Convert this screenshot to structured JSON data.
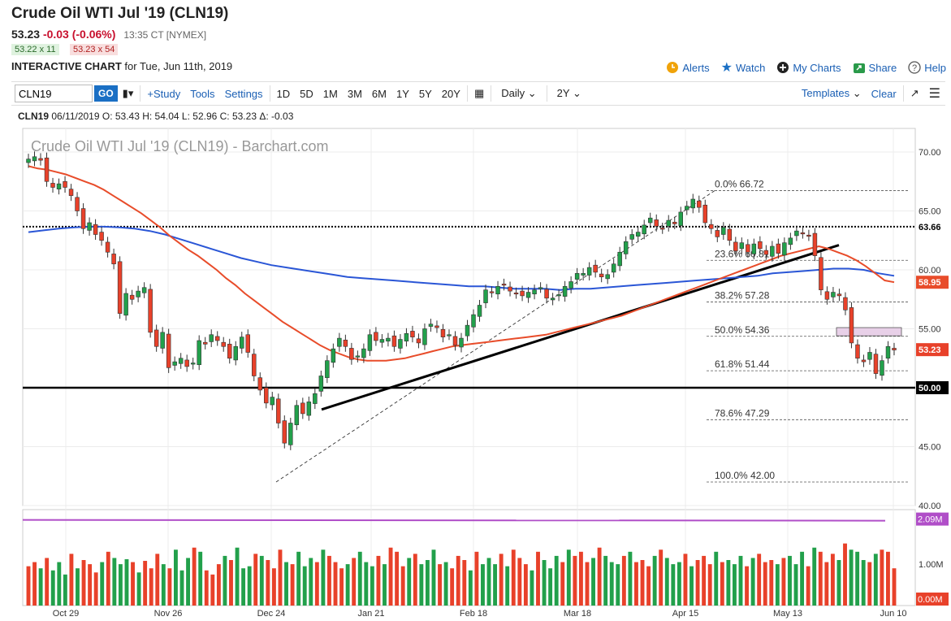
{
  "header": {
    "title": "Crude Oil WTI Jul '19 (CLN19)",
    "last": "53.23",
    "change": "-0.03 (-0.06%)",
    "time": "13:35 CT [NYMEX]",
    "bid": "53.22 x 11",
    "ask": "53.23 x 54",
    "chart_kind": "INTERACTIVE CHART",
    "chart_date": "for Tue, Jun 11th, 2019"
  },
  "top_links": {
    "alerts": "Alerts",
    "watch": "Watch",
    "my_charts": "My Charts",
    "share": "Share",
    "help": "Help"
  },
  "toolbar": {
    "symbol": "CLN19",
    "go": "GO",
    "study": "+Study",
    "tools": "Tools",
    "settings": "Settings",
    "periods": [
      "1D",
      "5D",
      "1M",
      "3M",
      "6M",
      "1Y",
      "5Y",
      "20Y"
    ],
    "interval": "Daily",
    "range": "2Y",
    "templates": "Templates",
    "clear": "Clear"
  },
  "ohlc_line": {
    "symbol": "CLN19",
    "rest": "06/11/2019 O: 53.43 H: 54.04 L: 52.96 C: 53.23 Δ: -0.03"
  },
  "chart_data": {
    "type": "candlestick",
    "title": "Crude Oil WTI Jul '19 (CLN19) - Barchart.com",
    "y_ticks": [
      "70.00",
      "65.00",
      "60.00",
      "55.00",
      "50.00",
      "45.00",
      "40.00"
    ],
    "ylim": [
      40,
      72
    ],
    "x_ticks": [
      "Oct 29",
      "Nov 26",
      "Dec 24",
      "Jan 21",
      "Feb 18",
      "Mar 18",
      "Apr 15",
      "May 13",
      "Jun 10"
    ],
    "price_badges": {
      "resistance": "63.66",
      "sma50": "58.95",
      "last": "53.23",
      "support": "50.00"
    },
    "fib_labels": [
      "0.0% 66.72",
      "23.6% 60.81",
      "38.2% 57.28",
      "50.0% 54.36",
      "61.8% 51.44",
      "78.6% 47.29",
      "100.0% 42.00"
    ],
    "fib_levels": [
      66.72,
      60.81,
      57.28,
      54.36,
      51.44,
      47.29,
      42.0
    ],
    "closes": [
      69.4,
      69.6,
      69.3,
      67.5,
      67.0,
      67.3,
      67.0,
      66.3,
      65.0,
      63.5,
      64.0,
      63.0,
      62.5,
      61.5,
      60.5,
      56.3,
      58.0,
      57.5,
      58.2,
      58.5,
      54.7,
      53.5,
      54.7,
      51.7,
      52.2,
      52.5,
      51.8,
      52.1,
      54.0,
      53.7,
      54.5,
      54.0,
      53.5,
      52.5,
      53.5,
      54.3,
      53.0,
      51.0,
      49.8,
      48.7,
      49.2,
      47.0,
      45.3,
      47.0,
      48.5,
      47.8,
      48.8,
      49.5,
      51.0,
      52.3,
      53.3,
      54.2,
      53.5,
      52.4,
      52.7,
      53.3,
      54.5,
      54.0,
      54.1,
      54.2,
      53.5,
      54.1,
      54.6,
      54.3,
      53.8,
      55.0,
      55.4,
      55.1,
      54.3,
      54.5,
      53.6,
      54.2,
      55.3,
      56.2,
      57.0,
      58.3,
      58.1,
      58.6,
      58.7,
      58.2,
      58.0,
      57.8,
      58.1,
      58.3,
      58.5,
      57.6,
      57.6,
      57.9,
      58.6,
      59.0,
      59.7,
      59.7,
      60.2,
      59.8,
      59.4,
      59.6,
      60.5,
      61.5,
      62.4,
      63.0,
      63.2,
      63.8,
      64.4,
      63.7,
      63.5,
      64.2,
      63.9,
      64.9,
      65.4,
      66.0,
      65.3,
      64.0,
      63.5,
      62.8,
      63.6,
      62.5,
      61.6,
      62.3,
      61.5,
      62.2,
      61.8,
      61.3,
      62.0,
      61.4,
      62.3,
      62.7,
      63.3,
      63.1,
      62.9,
      61.2,
      58.3,
      57.5,
      58.1,
      57.8,
      56.6,
      53.8,
      52.5,
      52.2,
      53.0,
      51.2,
      52.3,
      53.5,
      53.2
    ],
    "sma50": [
      68.8,
      68.6,
      68.5,
      68.3,
      68.1,
      67.8,
      67.5,
      67.2,
      66.8,
      66.3,
      65.8,
      65.3,
      64.8,
      64.2,
      63.6,
      62.9,
      62.3,
      61.7,
      61.2,
      60.6,
      60.0,
      59.3,
      58.7,
      58.0,
      57.4,
      56.8,
      56.2,
      55.6,
      55.1,
      54.6,
      54.1,
      53.6,
      53.2,
      52.9,
      52.6,
      52.4,
      52.3,
      52.3,
      52.3,
      52.4,
      52.5,
      52.7,
      52.9,
      53.1,
      53.3,
      53.5,
      53.6,
      53.7,
      53.8,
      53.9,
      54.0,
      54.1,
      54.2,
      54.3,
      54.4,
      54.5,
      54.7,
      54.9,
      55.1,
      55.3,
      55.5,
      55.7,
      55.9,
      56.1,
      56.4,
      56.7,
      57.0,
      57.3,
      57.6,
      57.9,
      58.2,
      58.5,
      58.8,
      59.1,
      59.4,
      59.7,
      60.0,
      60.3,
      60.6,
      60.9,
      61.2,
      61.4,
      61.6,
      61.8,
      62.0,
      61.8,
      61.5,
      61.2,
      60.8,
      60.3,
      59.7,
      59.1,
      58.95
    ],
    "sma200": [
      63.2,
      63.35,
      63.5,
      63.6,
      63.66,
      63.66,
      63.6,
      63.5,
      63.3,
      63.0,
      62.6,
      62.2,
      61.8,
      61.4,
      61.0,
      60.7,
      60.4,
      60.2,
      60.0,
      59.8,
      59.6,
      59.4,
      59.3,
      59.2,
      59.1,
      59.0,
      58.9,
      58.8,
      58.7,
      58.6,
      58.6,
      58.5,
      58.4,
      58.4,
      58.4,
      58.3,
      58.4,
      58.4,
      58.5,
      58.6,
      58.7,
      58.8,
      58.9,
      59.0,
      59.1,
      59.2,
      59.3,
      59.4,
      59.5,
      59.7,
      59.8,
      59.9,
      60.0,
      60.1,
      60.1,
      60.0,
      59.7,
      59.5
    ],
    "volume_badges": [
      "2.09M",
      "1.00M",
      "0.00M"
    ],
    "volume_ylim": [
      0,
      2.2
    ],
    "volumes": [
      0.95,
      1.05,
      0.9,
      1.15,
      0.85,
      1.05,
      0.75,
      1.25,
      0.9,
      1.1,
      1.0,
      0.8,
      1.05,
      1.3,
      1.15,
      1.0,
      1.12,
      1.05,
      0.8,
      1.08,
      0.9,
      1.25,
      1.0,
      0.9,
      1.35,
      0.85,
      1.15,
      1.4,
      1.3,
      0.85,
      0.75,
      1.0,
      1.2,
      1.1,
      1.4,
      0.9,
      0.95,
      1.25,
      1.2,
      1.1,
      0.9,
      1.35,
      1.05,
      1.0,
      1.3,
      0.95,
      1.15,
      1.05,
      1.35,
      1.2,
      1.05,
      0.9,
      1.0,
      1.15,
      1.3,
      1.05,
      0.95,
      1.2,
      1.0,
      1.4,
      1.3,
      0.95,
      1.15,
      1.25,
      1.0,
      1.1,
      1.35,
      1.0,
      1.05,
      0.9,
      1.2,
      1.1,
      0.85,
      1.3,
      1.0,
      1.15,
      1.0,
      1.25,
      0.95,
      1.35,
      1.15,
      1.0,
      0.85,
      1.3,
      1.1,
      0.9,
      1.2,
      1.05,
      1.35,
      1.2,
      1.3,
      1.05,
      1.15,
      1.4,
      1.2,
      1.05,
      1.0,
      1.2,
      1.3,
      1.05,
      1.1,
      0.95,
      1.2,
      1.35,
      1.15,
      1.0,
      1.05,
      1.25,
      0.95,
      1.1,
      1.2,
      1.0,
      1.3,
      1.05,
      1.1,
      1.0,
      1.2,
      0.95,
      1.15,
      1.25,
      1.05,
      1.1,
      1.0,
      1.15,
      1.2,
      1.0,
      1.3,
      0.95,
      1.4,
      1.3,
      1.05,
      1.25,
      1.1,
      1.5,
      1.35,
      1.3,
      1.1,
      1.05,
      1.25,
      1.35,
      1.3,
      0.9
    ],
    "volume_ma": 2.07
  },
  "colors": {
    "up": "#22a04b",
    "down": "#e8412a",
    "sma50": "#e84c2a",
    "sma200": "#2a56d6",
    "volma": "#b04ec8",
    "link": "#1a5fb4"
  }
}
